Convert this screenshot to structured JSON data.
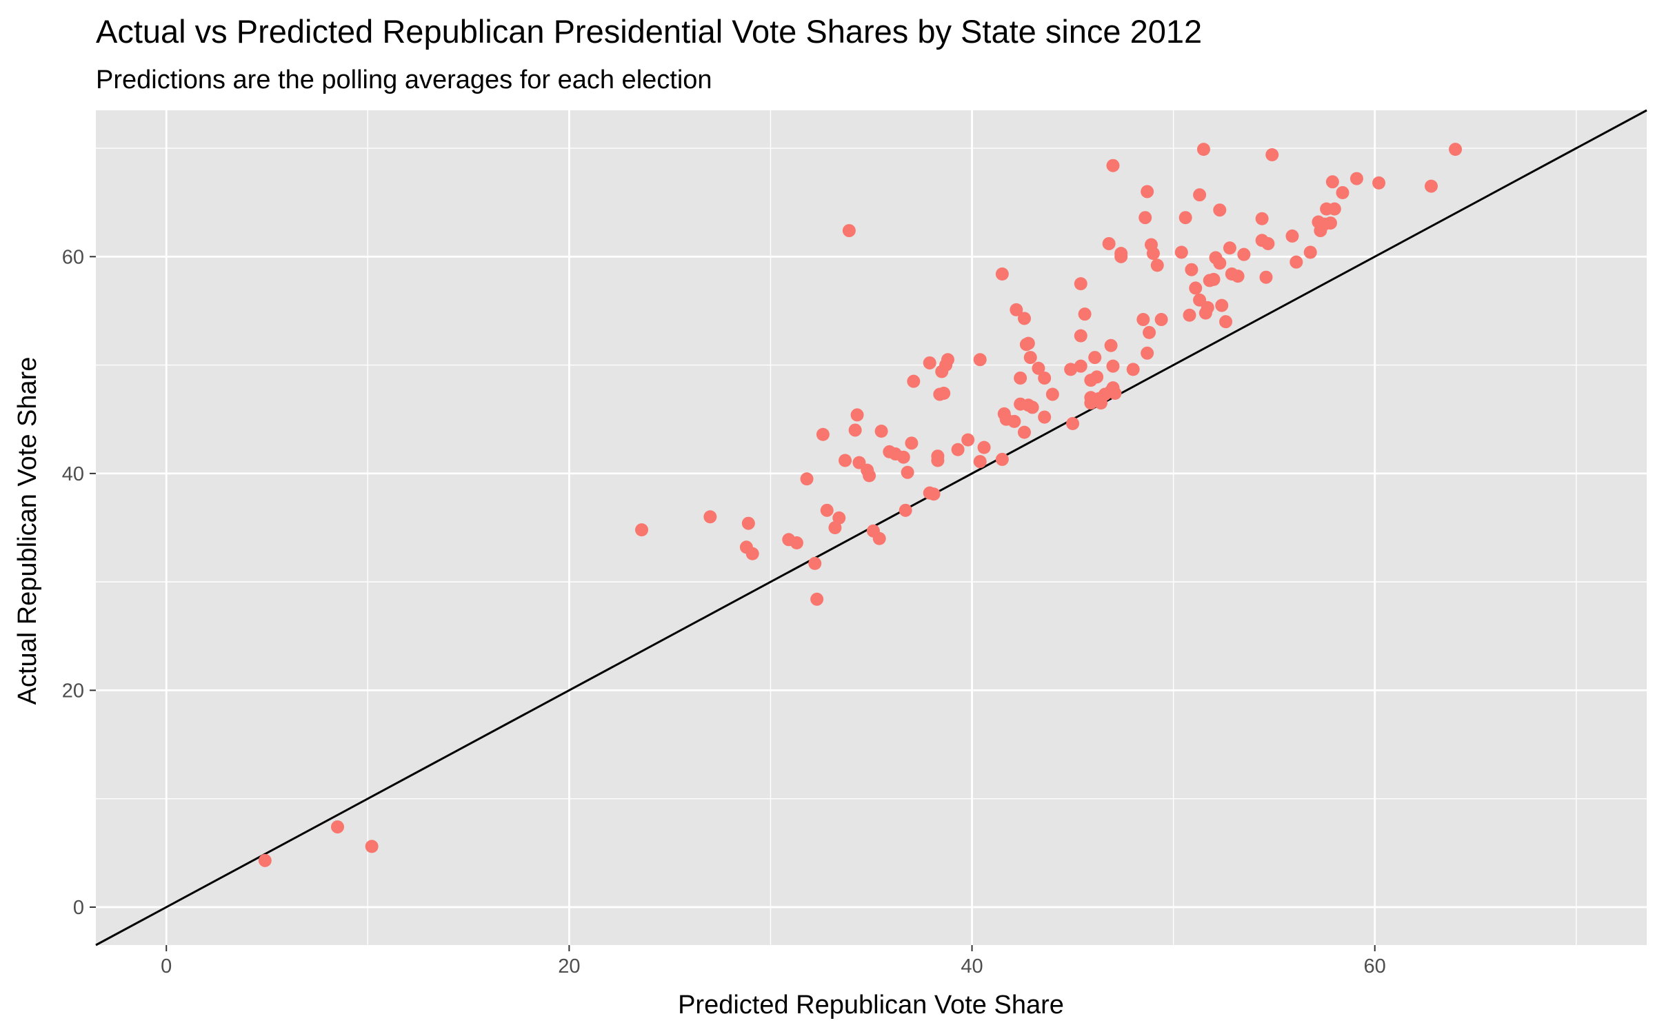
{
  "chart_data": {
    "type": "scatter",
    "title": "Actual vs Predicted Republican Presidential Vote Shares by State since 2012",
    "subtitle": "Predictions are the polling averages for each election",
    "xlabel": "Predicted Republican Vote Share",
    "ylabel": "Actual Republican Vote Share",
    "xlim": [
      -3.5,
      73.5
    ],
    "ylim": [
      -3.5,
      73.5
    ],
    "xticks": [
      0,
      20,
      40,
      60
    ],
    "yticks": [
      0,
      20,
      40,
      60
    ],
    "xtick_labels": [
      "0",
      "20",
      "40",
      "60"
    ],
    "ytick_labels": [
      "0",
      "20",
      "40",
      "60"
    ],
    "grid": true,
    "reference_line": "y = x",
    "point_color": "#F8766D",
    "panel_color": "#E5E5E5",
    "grid_color": "#FFFFFF",
    "line_color": "#000000",
    "points": [
      [
        4.9,
        4.3
      ],
      [
        8.5,
        7.4
      ],
      [
        10.2,
        5.6
      ],
      [
        23.6,
        34.8
      ],
      [
        27.0,
        36.0
      ],
      [
        28.8,
        33.2
      ],
      [
        28.9,
        35.4
      ],
      [
        29.1,
        32.6
      ],
      [
        30.9,
        33.9
      ],
      [
        31.3,
        33.6
      ],
      [
        31.8,
        39.5
      ],
      [
        32.2,
        31.7
      ],
      [
        32.3,
        28.4
      ],
      [
        32.6,
        43.6
      ],
      [
        32.8,
        36.6
      ],
      [
        33.2,
        35.0
      ],
      [
        33.4,
        35.9
      ],
      [
        33.7,
        41.2
      ],
      [
        33.9,
        62.4
      ],
      [
        34.2,
        44.0
      ],
      [
        34.3,
        45.4
      ],
      [
        34.4,
        41.0
      ],
      [
        34.8,
        40.3
      ],
      [
        34.9,
        39.8
      ],
      [
        35.1,
        34.7
      ],
      [
        35.4,
        34.0
      ],
      [
        35.5,
        43.9
      ],
      [
        35.9,
        42.0
      ],
      [
        36.2,
        41.8
      ],
      [
        36.6,
        41.5
      ],
      [
        36.7,
        36.6
      ],
      [
        36.8,
        40.1
      ],
      [
        37.0,
        42.8
      ],
      [
        37.1,
        48.5
      ],
      [
        37.9,
        38.2
      ],
      [
        37.9,
        50.2
      ],
      [
        38.1,
        38.1
      ],
      [
        38.3,
        41.6
      ],
      [
        38.3,
        41.2
      ],
      [
        38.4,
        47.3
      ],
      [
        38.5,
        49.4
      ],
      [
        38.6,
        47.4
      ],
      [
        38.7,
        50.0
      ],
      [
        38.8,
        50.5
      ],
      [
        39.3,
        42.2
      ],
      [
        39.8,
        43.1
      ],
      [
        40.4,
        41.1
      ],
      [
        40.4,
        50.5
      ],
      [
        40.6,
        42.4
      ],
      [
        41.5,
        41.3
      ],
      [
        41.5,
        58.4
      ],
      [
        41.6,
        45.5
      ],
      [
        41.7,
        45.0
      ],
      [
        42.1,
        44.8
      ],
      [
        42.2,
        55.1
      ],
      [
        42.4,
        46.4
      ],
      [
        42.4,
        48.8
      ],
      [
        42.6,
        54.3
      ],
      [
        42.6,
        43.8
      ],
      [
        42.7,
        51.9
      ],
      [
        42.8,
        46.3
      ],
      [
        42.8,
        52.0
      ],
      [
        42.9,
        50.7
      ],
      [
        43.0,
        46.1
      ],
      [
        43.3,
        49.7
      ],
      [
        43.6,
        45.2
      ],
      [
        43.6,
        48.8
      ],
      [
        44.0,
        47.3
      ],
      [
        44.9,
        49.6
      ],
      [
        45.0,
        44.6
      ],
      [
        45.4,
        57.5
      ],
      [
        45.4,
        52.7
      ],
      [
        45.4,
        49.9
      ],
      [
        45.6,
        54.7
      ],
      [
        45.9,
        46.5
      ],
      [
        45.9,
        48.6
      ],
      [
        45.9,
        47.0
      ],
      [
        46.1,
        50.7
      ],
      [
        46.2,
        48.9
      ],
      [
        46.3,
        46.9
      ],
      [
        46.4,
        46.5
      ],
      [
        46.6,
        47.3
      ],
      [
        46.8,
        61.2
      ],
      [
        46.9,
        47.6
      ],
      [
        46.9,
        51.8
      ],
      [
        47.0,
        49.9
      ],
      [
        47.0,
        68.4
      ],
      [
        47.0,
        47.9
      ],
      [
        47.1,
        47.4
      ],
      [
        47.4,
        60.3
      ],
      [
        47.4,
        60.0
      ],
      [
        48.0,
        49.6
      ],
      [
        48.5,
        54.2
      ],
      [
        48.6,
        63.6
      ],
      [
        48.7,
        66.0
      ],
      [
        48.7,
        51.1
      ],
      [
        48.8,
        53.0
      ],
      [
        48.9,
        61.1
      ],
      [
        49.0,
        60.3
      ],
      [
        49.2,
        59.2
      ],
      [
        49.4,
        54.2
      ],
      [
        50.4,
        60.4
      ],
      [
        50.6,
        63.6
      ],
      [
        50.8,
        54.6
      ],
      [
        50.9,
        58.8
      ],
      [
        51.1,
        57.1
      ],
      [
        51.3,
        65.7
      ],
      [
        51.3,
        56.0
      ],
      [
        51.5,
        69.9
      ],
      [
        51.6,
        54.8
      ],
      [
        51.7,
        55.3
      ],
      [
        51.8,
        57.8
      ],
      [
        52.0,
        57.9
      ],
      [
        52.1,
        59.9
      ],
      [
        52.3,
        64.3
      ],
      [
        52.3,
        59.4
      ],
      [
        52.4,
        55.5
      ],
      [
        52.6,
        54.0
      ],
      [
        52.8,
        60.8
      ],
      [
        52.9,
        58.4
      ],
      [
        53.2,
        58.2
      ],
      [
        53.5,
        60.2
      ],
      [
        54.4,
        63.5
      ],
      [
        54.4,
        61.5
      ],
      [
        54.6,
        58.1
      ],
      [
        54.7,
        61.2
      ],
      [
        54.9,
        69.4
      ],
      [
        55.9,
        61.9
      ],
      [
        56.1,
        59.5
      ],
      [
        56.8,
        60.4
      ],
      [
        57.2,
        63.2
      ],
      [
        57.3,
        62.4
      ],
      [
        57.5,
        63.0
      ],
      [
        57.6,
        64.4
      ],
      [
        57.8,
        63.1
      ],
      [
        57.9,
        66.9
      ],
      [
        58.0,
        64.4
      ],
      [
        58.4,
        65.9
      ],
      [
        59.1,
        67.2
      ],
      [
        60.2,
        66.8
      ],
      [
        62.8,
        66.5
      ],
      [
        64.0,
        69.9
      ]
    ]
  }
}
